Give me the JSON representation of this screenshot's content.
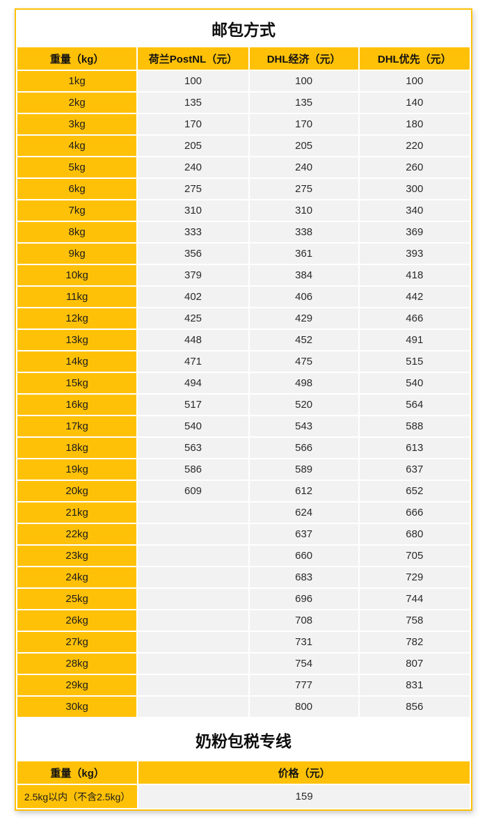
{
  "theme": {
    "accent_color": "#FFC107",
    "cell_bg_color": "#F2F2F2",
    "card_bg_color": "#FFFFFF",
    "text_color": "#111111"
  },
  "parcel_table": {
    "title": "邮包方式",
    "headers": [
      "重量（kg）",
      "荷兰PostNL（元）",
      "DHL经济（元）",
      "DHL优先（元）"
    ],
    "rows": [
      [
        "1kg",
        "100",
        "100",
        "100"
      ],
      [
        "2kg",
        "135",
        "135",
        "140"
      ],
      [
        "3kg",
        "170",
        "170",
        "180"
      ],
      [
        "4kg",
        "205",
        "205",
        "220"
      ],
      [
        "5kg",
        "240",
        "240",
        "260"
      ],
      [
        "6kg",
        "275",
        "275",
        "300"
      ],
      [
        "7kg",
        "310",
        "310",
        "340"
      ],
      [
        "8kg",
        "333",
        "338",
        "369"
      ],
      [
        "9kg",
        "356",
        "361",
        "393"
      ],
      [
        "10kg",
        "379",
        "384",
        "418"
      ],
      [
        "11kg",
        "402",
        "406",
        "442"
      ],
      [
        "12kg",
        "425",
        "429",
        "466"
      ],
      [
        "13kg",
        "448",
        "452",
        "491"
      ],
      [
        "14kg",
        "471",
        "475",
        "515"
      ],
      [
        "15kg",
        "494",
        "498",
        "540"
      ],
      [
        "16kg",
        "517",
        "520",
        "564"
      ],
      [
        "17kg",
        "540",
        "543",
        "588"
      ],
      [
        "18kg",
        "563",
        "566",
        "613"
      ],
      [
        "19kg",
        "586",
        "589",
        "637"
      ],
      [
        "20kg",
        "609",
        "612",
        "652"
      ],
      [
        "21kg",
        "",
        "624",
        "666"
      ],
      [
        "22kg",
        "",
        "637",
        "680"
      ],
      [
        "23kg",
        "",
        "660",
        "705"
      ],
      [
        "24kg",
        "",
        "683",
        "729"
      ],
      [
        "25kg",
        "",
        "696",
        "744"
      ],
      [
        "26kg",
        "",
        "708",
        "758"
      ],
      [
        "27kg",
        "",
        "731",
        "782"
      ],
      [
        "28kg",
        "",
        "754",
        "807"
      ],
      [
        "29kg",
        "",
        "777",
        "831"
      ],
      [
        "30kg",
        "",
        "800",
        "856"
      ]
    ]
  },
  "milk_table": {
    "title": "奶粉包税专线",
    "headers": [
      "重量（kg）",
      "价格（元）"
    ],
    "rows": [
      [
        "2.5kg以内（不含2.5kg）",
        "159"
      ]
    ]
  }
}
